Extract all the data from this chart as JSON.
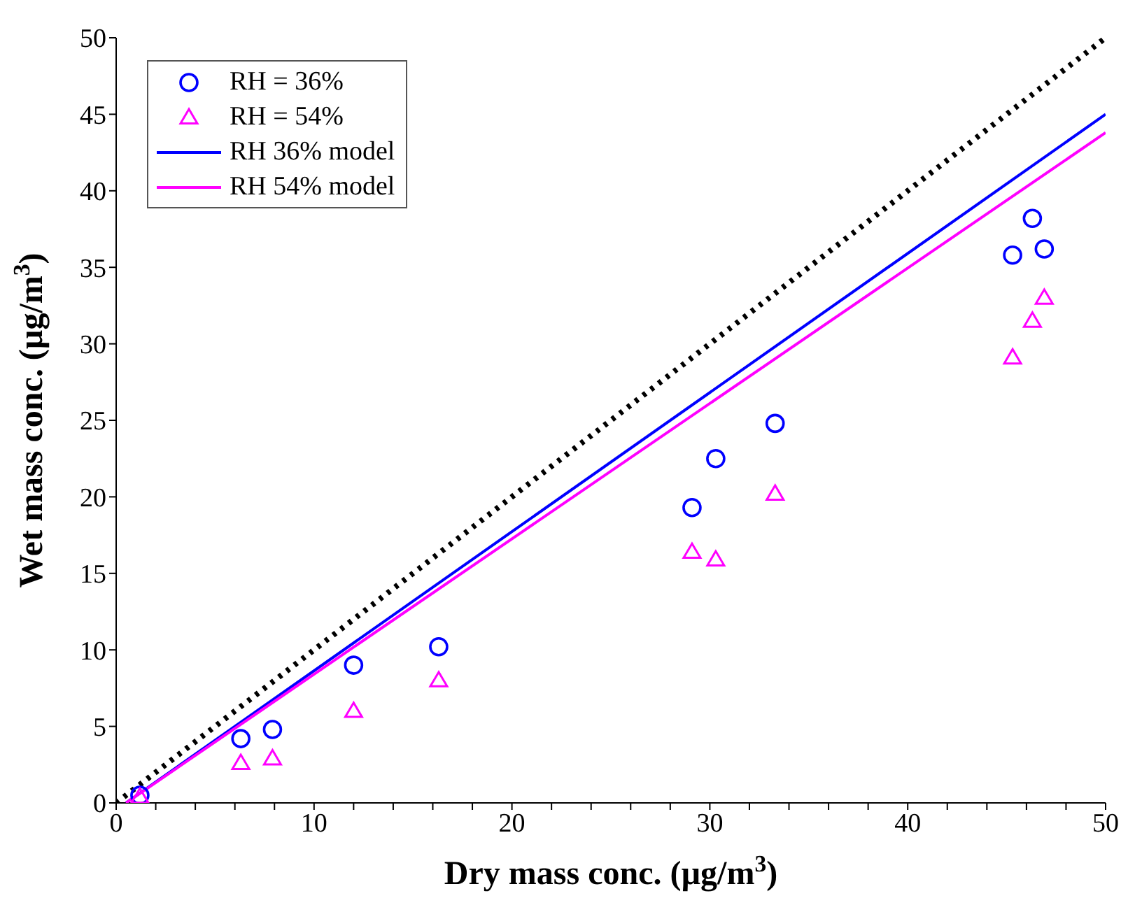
{
  "chart_data": {
    "type": "scatter",
    "xlabel": "Dry mass conc. (µg/m$^{3}$)",
    "ylabel": "Wet mass conc. (µg/m$^{3}$)",
    "xlim": [
      0,
      50
    ],
    "ylim": [
      0,
      50
    ],
    "xticks": [
      0,
      {
        "value": 2,
        "label": null
      },
      {
        "value": 4,
        "label": null
      },
      {
        "value": 6,
        "label": null
      },
      {
        "value": 8,
        "label": null
      },
      10,
      {
        "value": 12,
        "label": null
      },
      {
        "value": 14,
        "label": null
      },
      {
        "value": 16,
        "label": null
      },
      {
        "value": 18,
        "label": null
      },
      20,
      {
        "value": 22,
        "label": null
      },
      {
        "value": 24,
        "label": null
      },
      {
        "value": 26,
        "label": null
      },
      {
        "value": 28,
        "label": null
      },
      30,
      {
        "value": 32,
        "label": null
      },
      {
        "value": 34,
        "label": null
      },
      {
        "value": 36,
        "label": null
      },
      {
        "value": 38,
        "label": null
      },
      40,
      {
        "value": 42,
        "label": null
      },
      {
        "value": 44,
        "label": null
      },
      {
        "value": 46,
        "label": null
      },
      {
        "value": 48,
        "label": null
      },
      50
    ],
    "yticks": [
      0,
      5,
      10,
      15,
      20,
      25,
      30,
      35,
      40,
      45,
      50
    ],
    "grid": false,
    "legend": "top left",
    "series": [
      {
        "name": "RH = 36%",
        "marker": "circle",
        "color": "#0000ff",
        "x": [
          1.2,
          6.3,
          7.9,
          12.0,
          16.3,
          29.1,
          30.3,
          33.3,
          45.3,
          46.3,
          46.9
        ],
        "values": [
          0.5,
          4.2,
          4.8,
          9.0,
          10.2,
          19.3,
          22.5,
          24.8,
          35.8,
          38.2,
          36.2
        ]
      },
      {
        "name": "RH = 54%",
        "marker": "triangle",
        "color": "#ff00ff",
        "x": [
          1.2,
          6.3,
          7.9,
          12.0,
          16.3,
          29.1,
          30.3,
          33.3,
          45.3,
          46.3,
          46.9
        ],
        "values": [
          0.4,
          2.6,
          2.9,
          6.0,
          8.0,
          16.4,
          15.9,
          20.2,
          29.1,
          31.5,
          33.0
        ]
      },
      {
        "name": "RH 36% model",
        "type": "line",
        "line_style": "solid",
        "color": "#0000ff",
        "x": [
          0.5,
          50
        ],
        "values": [
          0,
          45
        ]
      },
      {
        "name": "RH 54% model",
        "type": "line",
        "line_style": "solid",
        "color": "#ff00ff",
        "x": [
          0.5,
          50
        ],
        "values": [
          0,
          43.8
        ]
      },
      {
        "type": "line",
        "line_style": "dotted",
        "color": "#000000",
        "x": [
          0,
          50
        ],
        "values": [
          0,
          50
        ]
      }
    ]
  }
}
